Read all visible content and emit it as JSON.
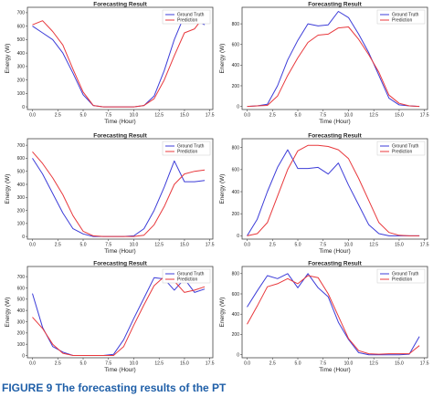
{
  "figure_caption": "FIGURE 9   The forecasting results of the PT",
  "colors": {
    "ground_truth": "#3c3cd8",
    "prediction": "#e8383c",
    "axis": "#444444"
  },
  "chart_data": [
    {
      "type": "line",
      "title": "Forecasting Result",
      "xlabel": "Time (Hour)",
      "ylabel": "Energy (W)",
      "xlim": [
        -0.5,
        17.8
      ],
      "ylim": [
        -20,
        740
      ],
      "xticks": [
        0.0,
        2.5,
        5.0,
        7.5,
        10.0,
        12.5,
        15.0,
        17.5
      ],
      "xtick_labels": [
        "0.0",
        "2.5",
        "5.0",
        "7.5",
        "10.0",
        "12.5",
        "15.0",
        "17.5"
      ],
      "yticks": [
        0,
        100,
        200,
        300,
        400,
        500,
        600,
        700
      ],
      "ytick_labels": [
        "0",
        "100",
        "200",
        "300",
        "400",
        "500",
        "600",
        "700"
      ],
      "legend": "top-right",
      "grid": false,
      "x": [
        0,
        1,
        2,
        3,
        4,
        5,
        6,
        7,
        8,
        9,
        10,
        11,
        12,
        13,
        14,
        15,
        16,
        17
      ],
      "series": [
        {
          "name": "Ground Truth",
          "values": [
            600,
            550,
            500,
            400,
            250,
            90,
            10,
            0,
            0,
            0,
            0,
            10,
            80,
            270,
            500,
            680,
            650,
            610
          ]
        },
        {
          "name": "Prediction",
          "values": [
            610,
            640,
            560,
            460,
            280,
            110,
            10,
            0,
            0,
            0,
            0,
            10,
            60,
            200,
            380,
            550,
            580,
            680
          ]
        }
      ]
    },
    {
      "type": "line",
      "title": "Forecasting Result",
      "xlabel": "Time (Hour)",
      "ylabel": "Energy (W)",
      "xlim": [
        -0.5,
        17.8
      ],
      "ylim": [
        -30,
        960
      ],
      "xticks": [
        0.0,
        2.5,
        5.0,
        7.5,
        10.0,
        12.5,
        15.0,
        17.5
      ],
      "xtick_labels": [
        "0.0",
        "2.5",
        "5.0",
        "7.5",
        "10.0",
        "12.5",
        "15.0",
        "17.5"
      ],
      "yticks": [
        0,
        200,
        400,
        600,
        800
      ],
      "ytick_labels": [
        "0",
        "200",
        "400",
        "600",
        "800"
      ],
      "legend": "top-right",
      "grid": false,
      "x": [
        0,
        1,
        2,
        3,
        4,
        5,
        6,
        7,
        8,
        9,
        10,
        11,
        12,
        13,
        14,
        15,
        16,
        17
      ],
      "series": [
        {
          "name": "Ground Truth",
          "values": [
            0,
            5,
            20,
            200,
            450,
            640,
            800,
            780,
            790,
            920,
            860,
            700,
            520,
            300,
            80,
            15,
            5,
            0
          ]
        },
        {
          "name": "Prediction",
          "values": [
            0,
            5,
            10,
            100,
            300,
            470,
            620,
            690,
            700,
            760,
            770,
            650,
            500,
            330,
            110,
            30,
            5,
            0
          ]
        }
      ]
    },
    {
      "type": "line",
      "title": "Forecasting Result",
      "xlabel": "Time (Hour)",
      "ylabel": "Energy (W)",
      "xlim": [
        -0.5,
        17.8
      ],
      "ylim": [
        -20,
        750
      ],
      "xticks": [
        0.0,
        2.5,
        5.0,
        7.5,
        10.0,
        12.5,
        15.0,
        17.5
      ],
      "xtick_labels": [
        "0.0",
        "2.5",
        "5.0",
        "7.5",
        "10.0",
        "12.5",
        "15.0",
        "17.5"
      ],
      "yticks": [
        0,
        100,
        200,
        300,
        400,
        500,
        600,
        700
      ],
      "ytick_labels": [
        "0",
        "100",
        "200",
        "300",
        "400",
        "500",
        "600",
        "700"
      ],
      "legend": "top-right",
      "grid": false,
      "x": [
        0,
        1,
        2,
        3,
        4,
        5,
        6,
        7,
        8,
        9,
        10,
        11,
        12,
        13,
        14,
        15,
        16,
        17
      ],
      "series": [
        {
          "name": "Ground Truth",
          "values": [
            600,
            480,
            330,
            180,
            60,
            20,
            0,
            0,
            0,
            0,
            5,
            60,
            200,
            380,
            580,
            420,
            420,
            430
          ]
        },
        {
          "name": "Prediction",
          "values": [
            650,
            560,
            450,
            320,
            160,
            40,
            5,
            0,
            0,
            0,
            0,
            10,
            90,
            230,
            400,
            480,
            500,
            510
          ]
        }
      ]
    },
    {
      "type": "line",
      "title": "Forecasting Result",
      "xlabel": "Time (Hour)",
      "ylabel": "Energy (W)",
      "xlim": [
        -0.5,
        17.8
      ],
      "ylim": [
        -30,
        880
      ],
      "xticks": [
        0.0,
        2.5,
        5.0,
        7.5,
        10.0,
        12.5,
        15.0,
        17.5
      ],
      "xtick_labels": [
        "0.0",
        "2.5",
        "5.0",
        "7.5",
        "10.0",
        "12.5",
        "15.0",
        "17.5"
      ],
      "yticks": [
        0,
        200,
        400,
        600,
        800
      ],
      "ytick_labels": [
        "0",
        "200",
        "400",
        "600",
        "800"
      ],
      "legend": "top-right",
      "grid": false,
      "x": [
        0,
        1,
        2,
        3,
        4,
        5,
        6,
        7,
        8,
        9,
        10,
        11,
        12,
        13,
        14,
        15,
        16,
        17
      ],
      "series": [
        {
          "name": "Ground Truth",
          "values": [
            0,
            150,
            400,
            620,
            780,
            610,
            610,
            620,
            560,
            660,
            460,
            280,
            100,
            20,
            0,
            0,
            0,
            0
          ]
        },
        {
          "name": "Prediction",
          "values": [
            0,
            20,
            120,
            360,
            600,
            770,
            820,
            820,
            810,
            780,
            700,
            520,
            320,
            120,
            30,
            5,
            0,
            0
          ]
        }
      ]
    },
    {
      "type": "line",
      "title": "Forecasting Result",
      "xlabel": "Time (Hour)",
      "ylabel": "Energy (W)",
      "xlim": [
        -0.5,
        17.8
      ],
      "ylim": [
        -20,
        790
      ],
      "xticks": [
        0.0,
        2.5,
        5.0,
        7.5,
        10.0,
        12.5,
        15.0,
        17.5
      ],
      "xtick_labels": [
        "0.0",
        "2.5",
        "5.0",
        "7.5",
        "10.0",
        "12.5",
        "15.0",
        "17.5"
      ],
      "yticks": [
        0,
        100,
        200,
        300,
        400,
        500,
        600,
        700
      ],
      "ytick_labels": [
        "0",
        "100",
        "200",
        "300",
        "400",
        "500",
        "600",
        "700"
      ],
      "legend": "top-right",
      "grid": false,
      "x": [
        0,
        1,
        2,
        3,
        4,
        5,
        6,
        7,
        8,
        9,
        10,
        11,
        12,
        13,
        14,
        15,
        16,
        17
      ],
      "series": [
        {
          "name": "Ground Truth",
          "values": [
            550,
            250,
            80,
            30,
            0,
            0,
            0,
            0,
            10,
            140,
            330,
            510,
            690,
            680,
            580,
            680,
            560,
            590
          ]
        },
        {
          "name": "Prediction",
          "values": [
            340,
            240,
            100,
            20,
            0,
            0,
            0,
            0,
            0,
            80,
            270,
            450,
            620,
            700,
            660,
            560,
            580,
            610
          ]
        }
      ]
    },
    {
      "type": "line",
      "title": "Forecasting Result",
      "xlabel": "Time (Hour)",
      "ylabel": "Energy (W)",
      "xlim": [
        -0.5,
        17.8
      ],
      "ylim": [
        -30,
        870
      ],
      "xticks": [
        0.0,
        2.5,
        5.0,
        7.5,
        10.0,
        12.5,
        15.0,
        17.5
      ],
      "xtick_labels": [
        "0.0",
        "2.5",
        "5.0",
        "7.5",
        "10.0",
        "12.5",
        "15.0",
        "17.5"
      ],
      "yticks": [
        0,
        200,
        400,
        600,
        800
      ],
      "ytick_labels": [
        "0",
        "200",
        "400",
        "600",
        "800"
      ],
      "legend": "top-right",
      "grid": false,
      "x": [
        0,
        1,
        2,
        3,
        4,
        5,
        6,
        7,
        8,
        9,
        10,
        11,
        12,
        13,
        14,
        15,
        16,
        17
      ],
      "series": [
        {
          "name": "Ground Truth",
          "values": [
            470,
            630,
            780,
            750,
            800,
            660,
            800,
            660,
            570,
            320,
            150,
            20,
            0,
            0,
            0,
            0,
            5,
            180
          ]
        },
        {
          "name": "Prediction",
          "values": [
            300,
            480,
            670,
            700,
            750,
            700,
            780,
            760,
            600,
            380,
            160,
            40,
            10,
            5,
            10,
            10,
            10,
            90
          ]
        }
      ]
    }
  ]
}
